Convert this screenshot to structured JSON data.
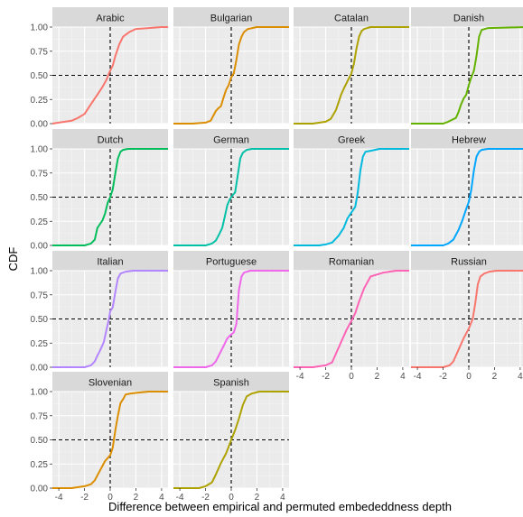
{
  "chart_data": {
    "type": "line",
    "chart_kind": "faceted empirical CDF (ggplot2 facet_wrap, 4 columns, grey theme)",
    "xlabel": "Difference between empirical and permuted embededdness depth",
    "ylabel": "CDF",
    "xlim": [
      -4.5,
      4.5
    ],
    "ylim": [
      0,
      1
    ],
    "x_ticks": [
      "-4",
      "-2",
      "0",
      "2",
      "4"
    ],
    "y_ticks": [
      "0.00",
      "0.25",
      "0.50",
      "0.75",
      "1.00"
    ],
    "reference_lines": {
      "vertical_x": 0,
      "horizontal_y": 0.5,
      "style": "dashed"
    },
    "grid": true,
    "legend": "none",
    "series": [
      {
        "name": "Arabic",
        "color": "#F8766D",
        "x": [
          -4.5,
          -4,
          -3,
          -2.5,
          -2,
          -1.6,
          -1.2,
          -1,
          -0.6,
          -0.3,
          -0.1,
          0,
          0.2,
          0.4,
          0.7,
          1,
          1.5,
          2,
          3,
          4,
          4.5
        ],
        "y": [
          0,
          0.01,
          0.03,
          0.06,
          0.1,
          0.18,
          0.26,
          0.3,
          0.38,
          0.45,
          0.52,
          0.55,
          0.6,
          0.7,
          0.82,
          0.9,
          0.95,
          0.98,
          0.99,
          1,
          1
        ]
      },
      {
        "name": "Bulgarian",
        "color": "#DB8E00",
        "x": [
          -4.5,
          -3,
          -2,
          -1.6,
          -1.2,
          -1,
          -0.8,
          -0.6,
          -0.4,
          -0.2,
          0,
          0.2,
          0.4,
          0.6,
          0.8,
          1,
          1.3,
          2,
          4.5
        ],
        "y": [
          0,
          0,
          0.01,
          0.03,
          0.13,
          0.16,
          0.18,
          0.27,
          0.35,
          0.4,
          0.48,
          0.52,
          0.66,
          0.82,
          0.9,
          0.95,
          0.98,
          1,
          1
        ]
      },
      {
        "name": "Catalan",
        "color": "#AEA200",
        "x": [
          -4.5,
          -3,
          -2,
          -1.6,
          -1.2,
          -1,
          -0.8,
          -0.6,
          -0.3,
          0,
          0.2,
          0.4,
          0.6,
          0.8,
          1,
          1.5,
          4.5
        ],
        "y": [
          0,
          0,
          0.02,
          0.05,
          0.14,
          0.22,
          0.3,
          0.36,
          0.44,
          0.52,
          0.62,
          0.78,
          0.9,
          0.96,
          0.98,
          1,
          1
        ]
      },
      {
        "name": "Danish",
        "color": "#64B200",
        "x": [
          -4.5,
          -2,
          -1.6,
          -1,
          -0.8,
          -0.6,
          -0.4,
          -0.2,
          0,
          0.2,
          0.4,
          0.6,
          0.8,
          1,
          1.5,
          4.5
        ],
        "y": [
          0,
          0,
          0.02,
          0.06,
          0.12,
          0.2,
          0.26,
          0.3,
          0.4,
          0.48,
          0.55,
          0.7,
          0.9,
          0.97,
          0.99,
          1
        ]
      },
      {
        "name": "Dutch",
        "color": "#00BD5C",
        "x": [
          -4.5,
          -2,
          -1.5,
          -1.2,
          -1,
          -0.8,
          -0.6,
          -0.4,
          -0.2,
          0,
          0.2,
          0.4,
          0.6,
          0.8,
          1,
          1.4,
          4.5
        ],
        "y": [
          0,
          0,
          0.02,
          0.06,
          0.18,
          0.22,
          0.26,
          0.33,
          0.44,
          0.5,
          0.58,
          0.75,
          0.9,
          0.97,
          0.99,
          1,
          1
        ]
      },
      {
        "name": "German",
        "color": "#00C1A7",
        "x": [
          -4.5,
          -2,
          -1.5,
          -1.2,
          -1,
          -0.7,
          -0.5,
          -0.3,
          -0.1,
          0,
          0.1,
          0.3,
          0.5,
          0.7,
          0.9,
          1.2,
          1.6,
          4.5
        ],
        "y": [
          0,
          0,
          0.02,
          0.05,
          0.1,
          0.18,
          0.3,
          0.42,
          0.48,
          0.5,
          0.52,
          0.55,
          0.72,
          0.9,
          0.96,
          0.99,
          1,
          1
        ]
      },
      {
        "name": "Greek",
        "color": "#00BADE",
        "x": [
          -4.5,
          -2.5,
          -2,
          -1.5,
          -1,
          -0.6,
          -0.3,
          0,
          0.3,
          0.5,
          0.7,
          0.9,
          1.1,
          1.5,
          2.2,
          4.5
        ],
        "y": [
          0,
          0,
          0.01,
          0.03,
          0.1,
          0.18,
          0.28,
          0.34,
          0.4,
          0.55,
          0.78,
          0.92,
          0.97,
          0.98,
          1,
          1
        ]
      },
      {
        "name": "Hebrew",
        "color": "#00A6FF",
        "x": [
          -4.5,
          -2,
          -1.6,
          -1.2,
          -0.8,
          -0.5,
          -0.2,
          0,
          0.2,
          0.4,
          0.6,
          0.8,
          1,
          1.5,
          4.5
        ],
        "y": [
          0,
          0,
          0.02,
          0.06,
          0.16,
          0.26,
          0.38,
          0.45,
          0.58,
          0.78,
          0.92,
          0.97,
          0.99,
          1,
          1
        ]
      },
      {
        "name": "Italian",
        "color": "#B385FF",
        "x": [
          -4.5,
          -2,
          -1.5,
          -1.2,
          -1,
          -0.8,
          -0.5,
          -0.3,
          -0.1,
          0,
          0.2,
          0.4,
          0.6,
          0.8,
          1.2,
          1.8,
          4.5
        ],
        "y": [
          0,
          0,
          0.02,
          0.06,
          0.12,
          0.17,
          0.26,
          0.38,
          0.5,
          0.58,
          0.62,
          0.78,
          0.92,
          0.97,
          0.99,
          1,
          1
        ]
      },
      {
        "name": "Portuguese",
        "color": "#EF67EB",
        "x": [
          -4.5,
          -2,
          -1.5,
          -1.2,
          -0.9,
          -0.6,
          -0.3,
          0,
          0.2,
          0.4,
          0.6,
          0.8,
          1,
          1.5,
          4.5
        ],
        "y": [
          0,
          0,
          0.02,
          0.06,
          0.14,
          0.22,
          0.3,
          0.34,
          0.36,
          0.45,
          0.8,
          0.94,
          0.98,
          1,
          1
        ]
      },
      {
        "name": "Romanian",
        "color": "#FF63B6",
        "x": [
          -4.5,
          -3,
          -2,
          -1.5,
          -1.2,
          -0.8,
          -0.4,
          0,
          0.3,
          0.6,
          1,
          1.5,
          2.5,
          3.5,
          4.5
        ],
        "y": [
          0,
          0,
          0.02,
          0.05,
          0.14,
          0.26,
          0.38,
          0.48,
          0.56,
          0.68,
          0.82,
          0.94,
          0.98,
          1,
          1
        ]
      },
      {
        "name": "Russian",
        "color": "#F8766D",
        "x": [
          -4.5,
          -2,
          -1.5,
          -1.2,
          -0.8,
          -0.4,
          0,
          0.3,
          0.5,
          0.7,
          0.9,
          1.2,
          1.6,
          2.2,
          4.5
        ],
        "y": [
          0,
          0,
          0.02,
          0.06,
          0.18,
          0.3,
          0.4,
          0.5,
          0.66,
          0.86,
          0.94,
          0.97,
          0.99,
          1,
          1
        ]
      },
      {
        "name": "Slovenian",
        "color": "#DB8E00",
        "x": [
          -4.5,
          -3,
          -2,
          -1.5,
          -1.2,
          -0.8,
          -0.4,
          0,
          0.2,
          0.4,
          0.6,
          0.8,
          1,
          1.2,
          1.6,
          2.2,
          3,
          4.5
        ],
        "y": [
          0,
          0,
          0.02,
          0.04,
          0.08,
          0.18,
          0.28,
          0.34,
          0.42,
          0.6,
          0.75,
          0.88,
          0.92,
          0.97,
          0.98,
          0.99,
          1,
          1
        ]
      },
      {
        "name": "Spanish",
        "color": "#AEA200",
        "x": [
          -4.5,
          -2.5,
          -2,
          -1.5,
          -1.2,
          -0.8,
          -0.4,
          0,
          0.3,
          0.6,
          0.9,
          1.2,
          1.6,
          2.2,
          4.5
        ],
        "y": [
          0,
          0,
          0.02,
          0.06,
          0.14,
          0.26,
          0.36,
          0.5,
          0.6,
          0.72,
          0.86,
          0.95,
          0.98,
          1,
          1
        ]
      }
    ]
  }
}
